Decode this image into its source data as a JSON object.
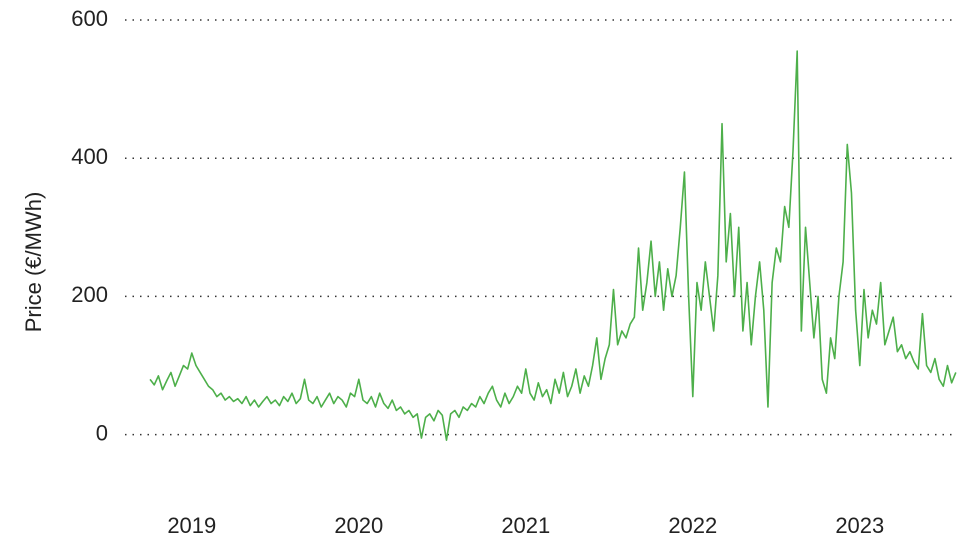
{
  "chart_data": {
    "type": "line",
    "y_label": "Price (€/MWh)",
    "x": [
      2018.75,
      2018.775,
      2018.8,
      2018.825,
      2018.85,
      2018.875,
      2018.9,
      2018.925,
      2018.95,
      2018.975,
      2019,
      2019.025,
      2019.05,
      2019.075,
      2019.1,
      2019.125,
      2019.15,
      2019.175,
      2019.2,
      2019.225,
      2019.25,
      2019.275,
      2019.3,
      2019.325,
      2019.35,
      2019.375,
      2019.4,
      2019.425,
      2019.45,
      2019.475,
      2019.5,
      2019.525,
      2019.55,
      2019.575,
      2019.6,
      2019.625,
      2019.65,
      2019.675,
      2019.7,
      2019.725,
      2019.75,
      2019.775,
      2019.8,
      2019.825,
      2019.85,
      2019.875,
      2019.9,
      2019.925,
      2019.95,
      2019.975,
      2020,
      2020.025,
      2020.05,
      2020.075,
      2020.1,
      2020.125,
      2020.15,
      2020.175,
      2020.2,
      2020.225,
      2020.25,
      2020.275,
      2020.3,
      2020.325,
      2020.35,
      2020.375,
      2020.4,
      2020.425,
      2020.45,
      2020.475,
      2020.5,
      2020.525,
      2020.55,
      2020.575,
      2020.6,
      2020.625,
      2020.65,
      2020.675,
      2020.7,
      2020.725,
      2020.75,
      2020.775,
      2020.8,
      2020.825,
      2020.85,
      2020.875,
      2020.9,
      2020.925,
      2020.95,
      2020.975,
      2021,
      2021.025,
      2021.05,
      2021.075,
      2021.1,
      2021.125,
      2021.15,
      2021.175,
      2021.2,
      2021.225,
      2021.25,
      2021.275,
      2021.3,
      2021.325,
      2021.35,
      2021.375,
      2021.4,
      2021.425,
      2021.45,
      2021.475,
      2021.5,
      2021.525,
      2021.55,
      2021.575,
      2021.6,
      2021.625,
      2021.65,
      2021.675,
      2021.7,
      2021.725,
      2021.75,
      2021.775,
      2021.8,
      2021.825,
      2021.85,
      2021.875,
      2021.9,
      2021.925,
      2021.95,
      2021.975,
      2022,
      2022.025,
      2022.05,
      2022.075,
      2022.1,
      2022.125,
      2022.15,
      2022.175,
      2022.2,
      2022.225,
      2022.25,
      2022.275,
      2022.3,
      2022.325,
      2022.35,
      2022.375,
      2022.4,
      2022.425,
      2022.45,
      2022.475,
      2022.5,
      2022.525,
      2022.55,
      2022.575,
      2022.6,
      2022.625,
      2022.65,
      2022.675,
      2022.7,
      2022.725,
      2022.75,
      2022.775,
      2022.8,
      2022.825,
      2022.85,
      2022.875,
      2022.9,
      2022.925,
      2022.95,
      2022.975,
      2023,
      2023.025,
      2023.05,
      2023.075,
      2023.1,
      2023.125,
      2023.15,
      2023.175,
      2023.2,
      2023.225,
      2023.25,
      2023.275,
      2023.3,
      2023.325,
      2023.35,
      2023.375,
      2023.4,
      2023.425,
      2023.45,
      2023.475,
      2023.5,
      2023.525,
      2023.55,
      2023.575
    ],
    "series": [
      {
        "name": "Price",
        "color": "#4daf4a",
        "values": [
          80,
          72,
          85,
          65,
          78,
          90,
          70,
          85,
          100,
          95,
          118,
          100,
          90,
          80,
          70,
          65,
          55,
          60,
          50,
          55,
          48,
          52,
          45,
          55,
          42,
          50,
          40,
          48,
          55,
          45,
          50,
          42,
          55,
          48,
          60,
          45,
          52,
          80,
          50,
          45,
          55,
          40,
          50,
          60,
          45,
          55,
          50,
          40,
          60,
          55,
          80,
          50,
          45,
          55,
          40,
          60,
          45,
          38,
          50,
          35,
          40,
          30,
          35,
          25,
          30,
          -5,
          25,
          30,
          20,
          35,
          28,
          -8,
          30,
          35,
          25,
          40,
          35,
          45,
          40,
          55,
          45,
          60,
          70,
          50,
          40,
          60,
          45,
          55,
          70,
          60,
          95,
          60,
          50,
          75,
          55,
          65,
          45,
          80,
          60,
          90,
          55,
          70,
          95,
          60,
          85,
          70,
          100,
          140,
          80,
          110,
          130,
          210,
          130,
          150,
          140,
          160,
          170,
          270,
          180,
          220,
          280,
          200,
          250,
          180,
          240,
          200,
          230,
          300,
          380,
          200,
          55,
          220,
          180,
          250,
          200,
          150,
          230,
          450,
          250,
          320,
          200,
          300,
          150,
          220,
          130,
          200,
          250,
          180,
          40,
          220,
          270,
          250,
          330,
          300,
          410,
          555,
          150,
          300,
          220,
          140,
          200,
          80,
          60,
          140,
          110,
          200,
          250,
          420,
          350,
          180,
          100,
          210,
          140,
          180,
          160,
          220,
          130,
          150,
          170,
          120,
          130,
          110,
          120,
          105,
          95,
          175,
          100,
          90,
          110,
          80,
          70,
          100,
          75,
          90
        ]
      }
    ],
    "xlim": [
      2018.6,
      2023.6
    ],
    "xticks": [
      2019,
      2020,
      2021,
      2022,
      2023
    ],
    "ylim": [
      -70,
      600
    ],
    "yticks": [
      0,
      200,
      400,
      600
    ],
    "grid": true
  }
}
